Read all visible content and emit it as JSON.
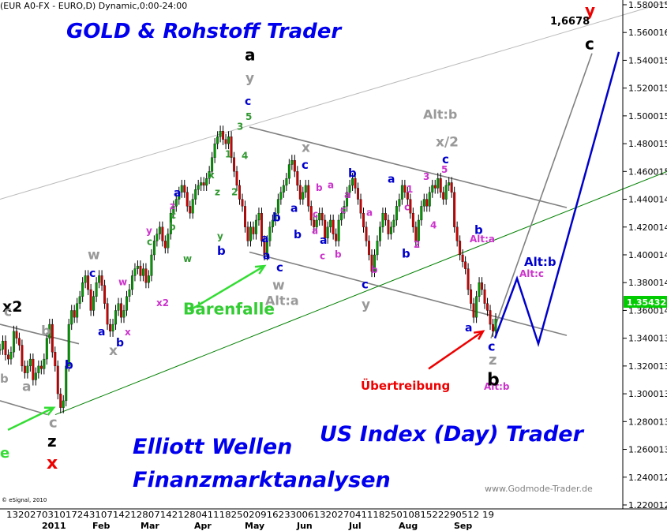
{
  "chart_data": {
    "type": "line",
    "header": "(EUR A0-FX - EURO,D) Dynamic,0:00-24:00",
    "brand_title": "GOLD & Rohstoff Trader",
    "subtitle_1": "Elliott Wellen",
    "subtitle_2": "Finanzmarktanalysen",
    "subtitle_3": "US Index (Day) Trader",
    "footer_url": "www.Godmode-Trader.de",
    "copyright": "© eSignal, 2010",
    "y_ticks": [
      "1.580015",
      "1.560016",
      "1.540015",
      "1.520015",
      "1.500015",
      "1.480015",
      "1.460015",
      "1.440014",
      "1.420014",
      "1.400014",
      "1.380014",
      "1.360014",
      "1.340013",
      "1.320013",
      "1.300013",
      "1.280013",
      "1.260013",
      "1.240012",
      "1.220012"
    ],
    "ylim": [
      1.22,
      1.58
    ],
    "last_price": "1.35432",
    "x_day_ticks": "13202703101724310714212807142128041118250209162330061320270411182501081522290512 19",
    "x_month_labels": [
      "2011",
      "Feb",
      "Mar",
      "Apr",
      "May",
      "Jun",
      "Jul",
      "Aug",
      "Sep"
    ],
    "target_label": "1,6678",
    "series": [
      {
        "values": [
          1.332,
          1.338,
          1.328,
          1.325,
          1.33,
          1.345,
          1.34,
          1.335,
          1.32,
          1.315,
          1.32,
          1.325,
          1.31,
          1.315,
          1.32,
          1.318,
          1.325,
          1.34,
          1.35,
          1.33,
          1.32,
          1.3,
          1.29,
          1.295,
          1.32,
          1.35,
          1.36,
          1.355,
          1.365,
          1.37,
          1.38,
          1.385,
          1.375,
          1.36,
          1.37,
          1.38,
          1.385,
          1.378,
          1.365,
          1.35,
          1.345,
          1.35,
          1.36,
          1.365,
          1.355,
          1.36,
          1.37,
          1.375,
          1.385,
          1.39,
          1.392,
          1.385,
          1.39,
          1.38,
          1.385,
          1.4,
          1.41,
          1.415,
          1.42,
          1.41,
          1.405,
          1.415,
          1.43,
          1.435,
          1.44,
          1.445,
          1.45,
          1.445,
          1.435,
          1.43,
          1.44,
          1.447,
          1.45,
          1.452,
          1.45,
          1.455,
          1.46,
          1.47,
          1.48,
          1.485,
          1.489,
          1.483,
          1.48,
          1.485,
          1.47,
          1.46,
          1.45,
          1.44,
          1.435,
          1.42,
          1.41,
          1.42,
          1.415,
          1.425,
          1.43,
          1.41,
          1.4,
          1.41,
          1.42,
          1.425,
          1.43,
          1.44,
          1.445,
          1.45,
          1.455,
          1.465,
          1.468,
          1.46,
          1.45,
          1.44,
          1.445,
          1.45,
          1.435,
          1.425,
          1.42,
          1.425,
          1.43,
          1.425,
          1.412,
          1.42,
          1.425,
          1.415,
          1.41,
          1.425,
          1.43,
          1.435,
          1.445,
          1.45,
          1.455,
          1.448,
          1.44,
          1.43,
          1.42,
          1.41,
          1.4,
          1.388,
          1.4,
          1.41,
          1.42,
          1.43,
          1.425,
          1.415,
          1.42,
          1.425,
          1.435,
          1.44,
          1.45,
          1.445,
          1.44,
          1.43,
          1.42,
          1.41,
          1.425,
          1.435,
          1.44,
          1.435,
          1.445,
          1.45,
          1.448,
          1.455,
          1.445,
          1.44,
          1.45,
          1.452,
          1.445,
          1.42,
          1.41,
          1.4,
          1.395,
          1.39,
          1.375,
          1.365,
          1.355,
          1.37,
          1.38,
          1.375,
          1.365,
          1.36,
          1.35,
          1.345,
          1.354
        ]
      }
    ],
    "channel_lines": [
      {
        "name": "outer-upper-line",
        "color": "#bbbbbb",
        "points": [
          [
            0,
            1.44
          ],
          [
            845,
            1.582
          ]
        ]
      },
      {
        "name": "channel-upper-line",
        "color": "#808080",
        "points": [
          [
            316,
            1.492
          ],
          [
            718,
            1.434
          ]
        ]
      },
      {
        "name": "channel-lower-line",
        "color": "#808080",
        "points": [
          [
            316,
            1.402
          ],
          [
            718,
            1.342
          ]
        ]
      },
      {
        "name": "left-channel-line",
        "color": "#808080",
        "points": [
          [
            0,
            1.35
          ],
          [
            100,
            1.336
          ]
        ]
      },
      {
        "name": "left-lower-line",
        "color": "#808080",
        "points": [
          [
            0,
            1.295
          ],
          [
            60,
            1.285
          ]
        ]
      },
      {
        "name": "support-trendline",
        "color": "#008000",
        "points": [
          [
            70,
            1.285
          ],
          [
            845,
            1.46
          ]
        ]
      },
      {
        "name": "target-line",
        "color": "#808080",
        "points": [
          [
            622,
            1.34
          ],
          [
            750,
            1.545
          ]
        ]
      }
    ],
    "projection": {
      "color": "#0000cc",
      "points": [
        [
          627,
          1.34
        ],
        [
          655,
          1.383
        ],
        [
          682,
          1.336
        ],
        [
          784,
          1.546
        ]
      ]
    },
    "arrows": [
      {
        "name": "bear-trap-arrow",
        "color": "#33dd33",
        "from": [
          240,
          1.36
        ],
        "to": [
          335,
          1.392
        ]
      },
      {
        "name": "left-green-arrow",
        "color": "#33dd33",
        "from": [
          10,
          1.274
        ],
        "to": [
          68,
          1.29
        ]
      },
      {
        "name": "exaggeration-arrow",
        "color": "#ee0000",
        "from": [
          543,
          1.318
        ],
        "to": [
          612,
          1.345
        ]
      }
    ],
    "annotations": [
      {
        "text": "Bärenfalle",
        "x": 232,
        "y": 1.357,
        "color": "#33cc33",
        "size": 20
      },
      {
        "text": "Übertreibung",
        "x": 457,
        "y": 1.303,
        "color": "#ee0000",
        "size": 15
      },
      {
        "text": "Alt:a",
        "x": 336,
        "y": 1.364,
        "color": "#999999",
        "size": 16
      },
      {
        "text": "Alt:b",
        "x": 536,
        "y": 1.498,
        "color": "#999999",
        "size": 16
      },
      {
        "text": "Alt:b",
        "x": 664,
        "y": 1.392,
        "color": "#0000cc",
        "size": 15
      },
      {
        "text": "Alt:c",
        "x": 658,
        "y": 1.384,
        "color": "#cc33cc",
        "size": 12
      },
      {
        "text": "Alt:a",
        "x": 595,
        "y": 1.409,
        "color": "#cc33cc",
        "size": 12
      },
      {
        "text": "Alt:b",
        "x": 613,
        "y": 1.303,
        "color": "#cc33cc",
        "size": 12
      },
      {
        "text": "x2",
        "x": 3,
        "y": 1.359,
        "color": "#000000",
        "size": 19
      },
      {
        "text": "y",
        "x": 741,
        "y": 1.572,
        "color": "#ee0000",
        "size": 20
      },
      {
        "text": "c",
        "x": 741,
        "y": 1.548,
        "color": "#000000",
        "size": 20
      },
      {
        "text": "a",
        "x": 310,
        "y": 1.54,
        "color": "#000000",
        "size": 20
      },
      {
        "text": "y",
        "x": 311,
        "y": 1.524,
        "color": "#999999",
        "size": 17
      },
      {
        "text": "c",
        "x": 310,
        "y": 1.508,
        "color": "#0000cc",
        "size": 14
      },
      {
        "text": "5",
        "x": 311,
        "y": 1.497,
        "color": "#339933",
        "size": 12
      },
      {
        "text": "3",
        "x": 300,
        "y": 1.49,
        "color": "#339933",
        "size": 12
      },
      {
        "text": "4",
        "x": 306,
        "y": 1.469,
        "color": "#339933",
        "size": 12
      },
      {
        "text": "1",
        "x": 285,
        "y": 1.47,
        "color": "#339933",
        "size": 12
      },
      {
        "text": "2",
        "x": 293,
        "y": 1.443,
        "color": "#339933",
        "size": 12
      },
      {
        "text": "x",
        "x": 264,
        "y": 1.455,
        "color": "#339933",
        "size": 12
      },
      {
        "text": "z",
        "x": 272,
        "y": 1.443,
        "color": "#339933",
        "size": 12
      },
      {
        "text": "y",
        "x": 275,
        "y": 1.411,
        "color": "#339933",
        "size": 12
      },
      {
        "text": "b",
        "x": 275,
        "y": 1.4,
        "color": "#0000cc",
        "size": 15
      },
      {
        "text": "w",
        "x": 232,
        "y": 1.395,
        "color": "#339933",
        "size": 12
      },
      {
        "text": "a",
        "x": 220,
        "y": 1.442,
        "color": "#0000cc",
        "size": 14
      },
      {
        "text": "z",
        "x": 215,
        "y": 1.433,
        "color": "#cc33cc",
        "size": 12
      },
      {
        "text": "c",
        "x": 216,
        "y": 1.426,
        "color": "#339933",
        "size": 12
      },
      {
        "text": "b",
        "x": 214,
        "y": 1.418,
        "color": "#339933",
        "size": 12
      },
      {
        "text": "y",
        "x": 185,
        "y": 1.415,
        "color": "#cc33cc",
        "size": 12
      },
      {
        "text": "c",
        "x": 186,
        "y": 1.407,
        "color": "#339933",
        "size": 12
      },
      {
        "text": "w",
        "x": 111,
        "y": 1.397,
        "color": "#999999",
        "size": 17
      },
      {
        "text": "c",
        "x": 113,
        "y": 1.384,
        "color": "#0000cc",
        "size": 14
      },
      {
        "text": "w",
        "x": 150,
        "y": 1.378,
        "color": "#cc33cc",
        "size": 12
      },
      {
        "text": "x2",
        "x": 198,
        "y": 1.363,
        "color": "#cc33cc",
        "size": 12
      },
      {
        "text": "x",
        "x": 158,
        "y": 1.342,
        "color": "#cc33cc",
        "size": 12
      },
      {
        "text": "x",
        "x": 138,
        "y": 1.328,
        "color": "#999999",
        "size": 17
      },
      {
        "text": "a",
        "x": 124,
        "y": 1.342,
        "color": "#0000cc",
        "size": 14
      },
      {
        "text": "b",
        "x": 147,
        "y": 1.334,
        "color": "#0000cc",
        "size": 14
      },
      {
        "text": "b",
        "x": 52,
        "y": 1.342,
        "color": "#999999",
        "size": 17
      },
      {
        "text": "b",
        "x": 82,
        "y": 1.318,
        "color": "#0000cc",
        "size": 15
      },
      {
        "text": "a",
        "x": 28,
        "y": 1.302,
        "color": "#999999",
        "size": 17
      },
      {
        "text": "c",
        "x": 5,
        "y": 1.356,
        "color": "#999999",
        "size": 17
      },
      {
        "text": "b",
        "x": 0,
        "y": 1.308,
        "color": "#999999",
        "size": 15
      },
      {
        "text": "c",
        "x": 62,
        "y": 1.276,
        "color": "#999999",
        "size": 18
      },
      {
        "text": "z",
        "x": 60,
        "y": 1.262,
        "color": "#000000",
        "size": 20
      },
      {
        "text": "x",
        "x": 59,
        "y": 1.246,
        "color": "#ee0000",
        "size": 22
      },
      {
        "text": "e",
        "x": 0,
        "y": 1.254,
        "color": "#33dd33",
        "size": 18
      },
      {
        "text": "x",
        "x": 382,
        "y": 1.474,
        "color": "#999999",
        "size": 17
      },
      {
        "text": "c",
        "x": 382,
        "y": 1.462,
        "color": "#0000cc",
        "size": 15
      },
      {
        "text": "a",
        "x": 368,
        "y": 1.431,
        "color": "#0000cc",
        "size": 14
      },
      {
        "text": "b",
        "x": 345,
        "y": 1.424,
        "color": "#0000cc",
        "size": 15
      },
      {
        "text": "b",
        "x": 372,
        "y": 1.412,
        "color": "#0000cc",
        "size": 14
      },
      {
        "text": "a",
        "x": 331,
        "y": 1.409,
        "color": "#0000cc",
        "size": 14
      },
      {
        "text": "a",
        "x": 333,
        "y": 1.397,
        "color": "#0000cc",
        "size": 14
      },
      {
        "text": "c",
        "x": 350,
        "y": 1.388,
        "color": "#0000cc",
        "size": 15
      },
      {
        "text": "w",
        "x": 345,
        "y": 1.375,
        "color": "#999999",
        "size": 17
      },
      {
        "text": "b",
        "x": 400,
        "y": 1.446,
        "color": "#cc33cc",
        "size": 12
      },
      {
        "text": "a",
        "x": 415,
        "y": 1.448,
        "color": "#cc33cc",
        "size": 12
      },
      {
        "text": "c",
        "x": 396,
        "y": 1.427,
        "color": "#cc33cc",
        "size": 12
      },
      {
        "text": "a",
        "x": 395,
        "y": 1.415,
        "color": "#cc33cc",
        "size": 12
      },
      {
        "text": "a",
        "x": 405,
        "y": 1.408,
        "color": "#0000cc",
        "size": 14
      },
      {
        "text": "c",
        "x": 405,
        "y": 1.397,
        "color": "#cc33cc",
        "size": 12
      },
      {
        "text": "b",
        "x": 424,
        "y": 1.398,
        "color": "#cc33cc",
        "size": 12
      },
      {
        "text": "b",
        "x": 441,
        "y": 1.456,
        "color": "#0000cc",
        "size": 15
      },
      {
        "text": "a",
        "x": 436,
        "y": 1.441,
        "color": "#cc33cc",
        "size": 12
      },
      {
        "text": "c",
        "x": 431,
        "y": 1.43,
        "color": "#cc33cc",
        "size": 12
      },
      {
        "text": "a",
        "x": 464,
        "y": 1.428,
        "color": "#cc33cc",
        "size": 12
      },
      {
        "text": "b",
        "x": 470,
        "y": 1.387,
        "color": "#cc33cc",
        "size": 12
      },
      {
        "text": "c",
        "x": 458,
        "y": 1.376,
        "color": "#0000cc",
        "size": 15
      },
      {
        "text": "y",
        "x": 458,
        "y": 1.361,
        "color": "#999999",
        "size": 17
      },
      {
        "text": "c",
        "x": 512,
        "y": 1.432,
        "color": "#cc33cc",
        "size": 12
      },
      {
        "text": "b",
        "x": 509,
        "y": 1.398,
        "color": "#0000cc",
        "size": 15
      },
      {
        "text": "1",
        "x": 515,
        "y": 1.445,
        "color": "#cc33cc",
        "size": 12
      },
      {
        "text": "2",
        "x": 524,
        "y": 1.405,
        "color": "#cc33cc",
        "size": 12
      },
      {
        "text": "3",
        "x": 536,
        "y": 1.454,
        "color": "#cc33cc",
        "size": 12
      },
      {
        "text": "4",
        "x": 545,
        "y": 1.419,
        "color": "#cc33cc",
        "size": 12
      },
      {
        "text": "5",
        "x": 559,
        "y": 1.459,
        "color": "#cc33cc",
        "size": 12
      },
      {
        "text": "a",
        "x": 491,
        "y": 1.452,
        "color": "#0000cc",
        "size": 14
      },
      {
        "text": "x/2",
        "x": 552,
        "y": 1.478,
        "color": "#999999",
        "size": 17
      },
      {
        "text": "c",
        "x": 560,
        "y": 1.466,
        "color": "#0000cc",
        "size": 15
      },
      {
        "text": "b",
        "x": 601,
        "y": 1.415,
        "color": "#0000cc",
        "size": 15
      },
      {
        "text": "a",
        "x": 589,
        "y": 1.345,
        "color": "#0000cc",
        "size": 14
      },
      {
        "text": "c",
        "x": 618,
        "y": 1.331,
        "color": "#0000cc",
        "size": 16
      },
      {
        "text": "z",
        "x": 619,
        "y": 1.321,
        "color": "#999999",
        "size": 18
      },
      {
        "text": "b",
        "x": 617,
        "y": 1.306,
        "color": "#000000",
        "size": 22
      }
    ]
  }
}
